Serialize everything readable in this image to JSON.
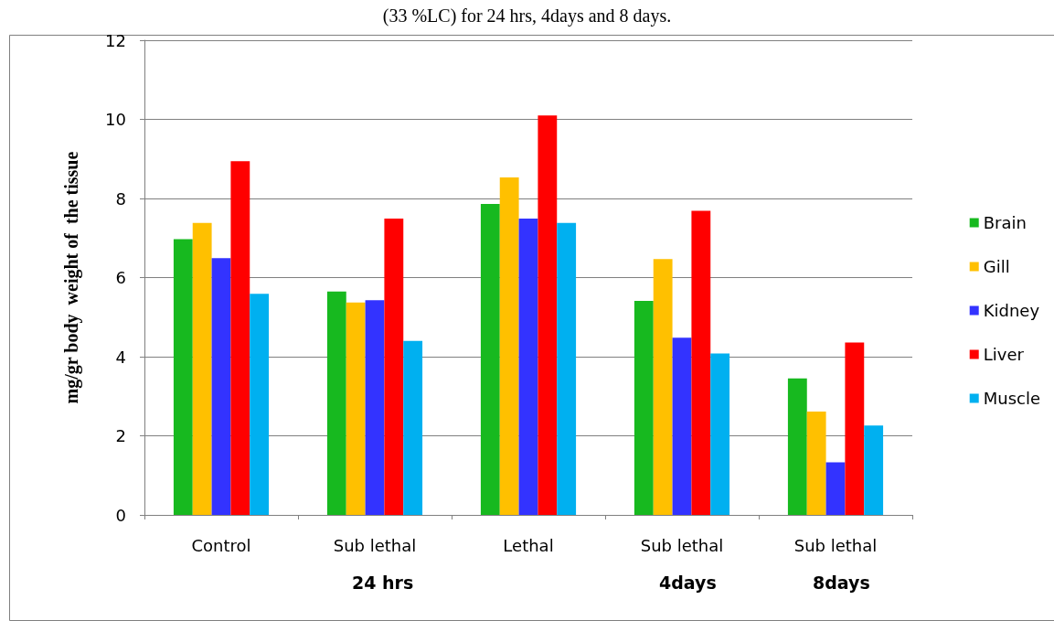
{
  "chart_data": {
    "type": "bar",
    "title": "(33 %LC) for 24 hrs, 4days and 8 days.",
    "ylabel": "mg/gr body  weight of  the tissue",
    "categories": [
      "Control",
      "Sub lethal",
      "Lethal",
      "Sub lethal",
      "Sub lethal"
    ],
    "series": [
      {
        "name": "Brain",
        "color": "#17b91f",
        "values": [
          6.97,
          5.65,
          7.86,
          5.41,
          3.45
        ]
      },
      {
        "name": "Gill",
        "color": "#ffc000",
        "values": [
          7.38,
          5.37,
          8.53,
          6.47,
          2.61
        ]
      },
      {
        "name": "Kidney",
        "color": "#3333ff",
        "values": [
          6.49,
          5.43,
          7.49,
          4.48,
          1.33
        ]
      },
      {
        "name": "Liver",
        "color": "#ff0000",
        "values": [
          8.94,
          7.49,
          10.1,
          7.69,
          4.36
        ]
      },
      {
        "name": "Muscle",
        "color": "#00b0f0",
        "values": [
          5.59,
          4.4,
          7.38,
          4.08,
          2.26
        ]
      }
    ],
    "annotations": [
      "24 hrs",
      "4days",
      "8days"
    ],
    "ylim": [
      0,
      12
    ],
    "yticks": [
      0,
      2,
      4,
      6,
      8,
      10,
      12
    ],
    "grid": "y",
    "legend": "right"
  }
}
